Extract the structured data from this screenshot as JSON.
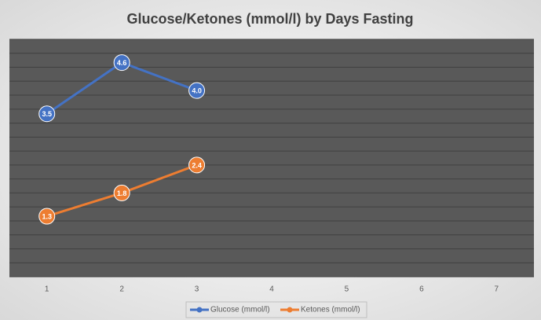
{
  "chart_data": {
    "type": "line",
    "title": "Glucose/Ketones (mmol/l) by Days Fasting",
    "categories": [
      "1",
      "2",
      "3",
      "4",
      "5",
      "6",
      "7"
    ],
    "series": [
      {
        "name": "Glucose (mmol/l)",
        "color": "#4472c4",
        "values": [
          3.5,
          4.6,
          4.0,
          null,
          null,
          null,
          null
        ],
        "value_labels": [
          "3.5",
          "4.6",
          "4.0",
          null,
          null,
          null,
          null
        ]
      },
      {
        "name": "Ketones (mmol/l)",
        "color": "#ed7d31",
        "values": [
          1.3,
          1.8,
          2.4,
          null,
          null,
          null,
          null
        ],
        "value_labels": [
          "1.3",
          "1.8",
          "2.4",
          null,
          null,
          null,
          null
        ]
      }
    ],
    "ylim": [
      0,
      5.1
    ],
    "yticks": [
      0,
      0.3,
      0.6,
      0.9,
      1.2,
      1.5,
      1.8,
      2.1,
      2.4,
      2.7,
      3,
      3.3,
      3.6,
      3.9,
      4.2,
      4.5,
      4.8,
      5.1
    ],
    "grid": true,
    "legend": "bottom"
  }
}
